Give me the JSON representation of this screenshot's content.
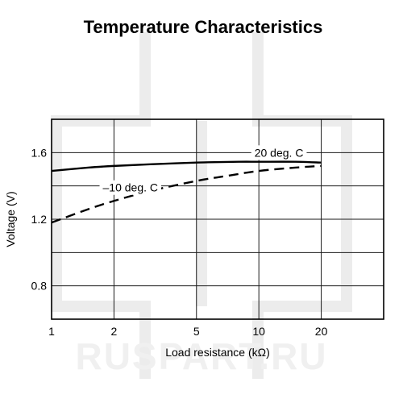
{
  "watermark": "RUSPART.RU",
  "chart_data": {
    "type": "line",
    "title": "Temperature Characteristics",
    "xlabel": "Load resistance (kΩ)",
    "ylabel": "Voltage (V)",
    "x_scale": "log",
    "xlim": [
      1,
      40
    ],
    "ylim": [
      0.6,
      1.8
    ],
    "x_ticks": [
      1,
      2,
      5,
      10,
      20
    ],
    "x_tick_labels": [
      "1",
      "2",
      "5",
      "10",
      "20"
    ],
    "y_ticks": [
      0.8,
      1.2,
      1.6
    ],
    "y_tick_labels": [
      "0.8",
      "1.2",
      "1.6"
    ],
    "x_grid": [
      1,
      2,
      5,
      10,
      20,
      40
    ],
    "y_grid": [
      0.6,
      0.8,
      1.0,
      1.2,
      1.4,
      1.6,
      1.8
    ],
    "grid": true,
    "series": [
      {
        "name": "20 deg. C",
        "style": "solid",
        "label_at": {
          "x": 12.5,
          "y": 1.6
        },
        "x": [
          1,
          1.5,
          2,
          3,
          5,
          8,
          10,
          15,
          20
        ],
        "y": [
          1.49,
          1.51,
          1.52,
          1.53,
          1.54,
          1.545,
          1.545,
          1.545,
          1.54
        ]
      },
      {
        "name": "–10 deg. C",
        "style": "dashed",
        "label_at": {
          "x": 2.4,
          "y": 1.39
        },
        "x": [
          1,
          1.5,
          2,
          3,
          5,
          7,
          10,
          15,
          20
        ],
        "y": [
          1.18,
          1.26,
          1.31,
          1.37,
          1.43,
          1.46,
          1.49,
          1.51,
          1.52
        ]
      }
    ]
  }
}
